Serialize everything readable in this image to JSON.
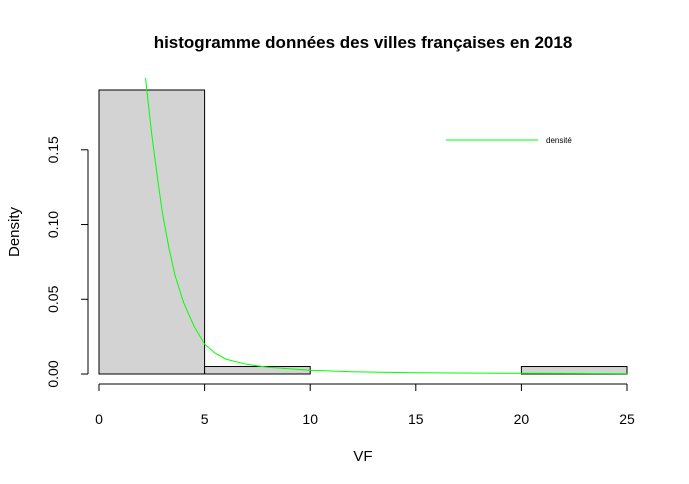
{
  "chart_data": {
    "type": "bar",
    "title": "histogramme données des villes françaises en 2018",
    "xlabel": "VF",
    "ylabel": "Density",
    "xlim": [
      0,
      25
    ],
    "ylim": [
      0,
      0.19
    ],
    "x_ticks": [
      0,
      5,
      10,
      15,
      20,
      25
    ],
    "x_tick_labels": [
      "0",
      "5",
      "10",
      "15",
      "20",
      "25"
    ],
    "y_ticks": [
      0.0,
      0.05,
      0.1,
      0.15
    ],
    "y_tick_labels": [
      "0.00",
      "0.05",
      "0.10",
      "0.15"
    ],
    "bins": [
      {
        "from": 0,
        "to": 5,
        "density": 0.19
      },
      {
        "from": 5,
        "to": 10,
        "density": 0.005
      },
      {
        "from": 10,
        "to": 15,
        "density": 0
      },
      {
        "from": 15,
        "to": 20,
        "density": 0
      },
      {
        "from": 20,
        "to": 25,
        "density": 0.005
      }
    ],
    "bar_fill": "#d3d3d3",
    "bar_stroke": "#000000",
    "grid": false,
    "series": [
      {
        "name": "densité",
        "type": "line",
        "color": "#00ff00",
        "points": [
          [
            2.2,
            0.198
          ],
          [
            2.5,
            0.16
          ],
          [
            2.8,
            0.128
          ],
          [
            3.0,
            0.108
          ],
          [
            3.3,
            0.085
          ],
          [
            3.6,
            0.066
          ],
          [
            4.0,
            0.048
          ],
          [
            4.5,
            0.032
          ],
          [
            5.0,
            0.02
          ],
          [
            5.5,
            0.014
          ],
          [
            6.0,
            0.01
          ],
          [
            7.0,
            0.0065
          ],
          [
            8.0,
            0.0045
          ],
          [
            10.0,
            0.0025
          ],
          [
            12.0,
            0.0015
          ],
          [
            15.0,
            0.0008
          ],
          [
            19.0,
            0.0005
          ],
          [
            22.0,
            0.0004
          ],
          [
            25.0,
            0.0003
          ]
        ]
      }
    ],
    "legend": {
      "position": "top-right",
      "entries": [
        "densité"
      ]
    }
  }
}
